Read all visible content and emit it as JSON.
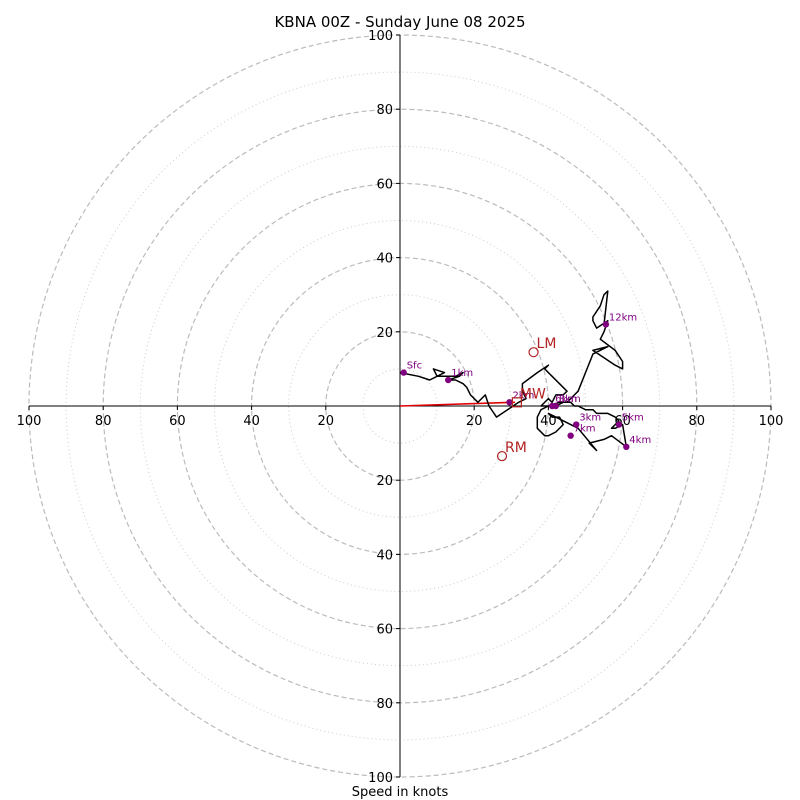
{
  "chart_data": {
    "type": "hodograph",
    "title": "KBNA 00Z - Sunday June 08 2025",
    "xlabel": "Speed in knots",
    "ylabel": "",
    "range": [
      -100,
      100
    ],
    "ring_major": [
      20,
      40,
      60,
      80,
      100
    ],
    "ring_minor": [
      10,
      30,
      50,
      70,
      90
    ],
    "x_ticks": [
      -100,
      -80,
      -60,
      -40,
      -20,
      20,
      40,
      60,
      80,
      100
    ],
    "x_tick_labels": [
      "100",
      "80",
      "60",
      "40",
      "20",
      "20",
      "40",
      "60",
      "80",
      "100"
    ],
    "y_ticks": [
      100,
      80,
      60,
      40,
      20,
      -20,
      -40,
      -60,
      -80,
      -100
    ],
    "y_tick_labels": [
      "100",
      "80",
      "60",
      "40",
      "20",
      "20",
      "40",
      "60",
      "80",
      "100"
    ],
    "grid": true,
    "colors": {
      "trace": "#000000",
      "height_markers": "#800080",
      "storm_motion": "#b22222",
      "shear_vector": "#e00000",
      "grid_major": "#bbbbbb",
      "grid_minor": "#cccccc",
      "axes": "#000000"
    },
    "series": [
      {
        "u": [
          0,
          5,
          8,
          10,
          9,
          12,
          10,
          15,
          17,
          16,
          13,
          15,
          17,
          18,
          19,
          21,
          23,
          24,
          26,
          32,
          34,
          33,
          33,
          37,
          40,
          39,
          41,
          43,
          45,
          44,
          42,
          41,
          40,
          38,
          42,
          44,
          46,
          47,
          48,
          50,
          52,
          53,
          56,
          58,
          59,
          58,
          57,
          58,
          60,
          61,
          57,
          55,
          51,
          53,
          48,
          46,
          44,
          42,
          40,
          41,
          43,
          44,
          42,
          40,
          39,
          37,
          37,
          38,
          40,
          43,
          45,
          46,
          47,
          48,
          52,
          56,
          52,
          55,
          58,
          60,
          60,
          58,
          54,
          55,
          56,
          53,
          52,
          52,
          54,
          55,
          56,
          55
        ],
        "v": [
          9,
          8,
          7,
          8,
          10,
          9,
          8,
          8,
          9,
          8,
          7,
          7,
          6,
          5,
          3,
          1,
          3,
          0,
          -3,
          1,
          2,
          4,
          6,
          9,
          11,
          10,
          8,
          6,
          4,
          3,
          3,
          1,
          2,
          0,
          0,
          1,
          1,
          0,
          0,
          -1,
          -1,
          -2,
          -2,
          -3,
          -4,
          -5,
          -6,
          -6,
          -5,
          -11,
          -8,
          -9,
          -10,
          -12,
          -6,
          -5,
          -4,
          -3,
          -2,
          -3,
          -3,
          -5,
          -7,
          -8,
          -8,
          -6,
          -3,
          -1,
          0,
          1,
          1,
          2,
          3,
          4,
          14,
          16,
          15,
          13,
          11,
          10,
          12,
          15,
          18,
          20,
          23,
          21,
          23,
          24,
          27,
          30,
          31,
          22
        ]
      }
    ],
    "height_markers": [
      {
        "label": "Sfc",
        "u": 1,
        "v": 9
      },
      {
        "label": "1km",
        "u": 13,
        "v": 7
      },
      {
        "label": "2km",
        "u": 29.5,
        "v": 1
      },
      {
        "label": "3km",
        "u": 47.5,
        "v": -5
      },
      {
        "label": "4km",
        "u": 61,
        "v": -11
      },
      {
        "label": "5km",
        "u": 59,
        "v": -5
      },
      {
        "label": "6km",
        "u": 41,
        "v": 0
      },
      {
        "label": "7km",
        "u": 46,
        "v": -8
      },
      {
        "label": "8km",
        "u": 42,
        "v": 0
      },
      {
        "label": "12km",
        "u": 55.5,
        "v": 22
      }
    ],
    "storm_motions": [
      {
        "label": "LM",
        "u": 36,
        "v": 14.5,
        "marker": "circle"
      },
      {
        "label": "MW",
        "u": 31.5,
        "v": 1,
        "marker": "square"
      },
      {
        "label": "RM",
        "u": 27.5,
        "v": -13.5,
        "marker": "circle"
      }
    ],
    "shear_vector": {
      "u0": 0,
      "v0": 0,
      "u1": 31,
      "v1": 1
    }
  }
}
